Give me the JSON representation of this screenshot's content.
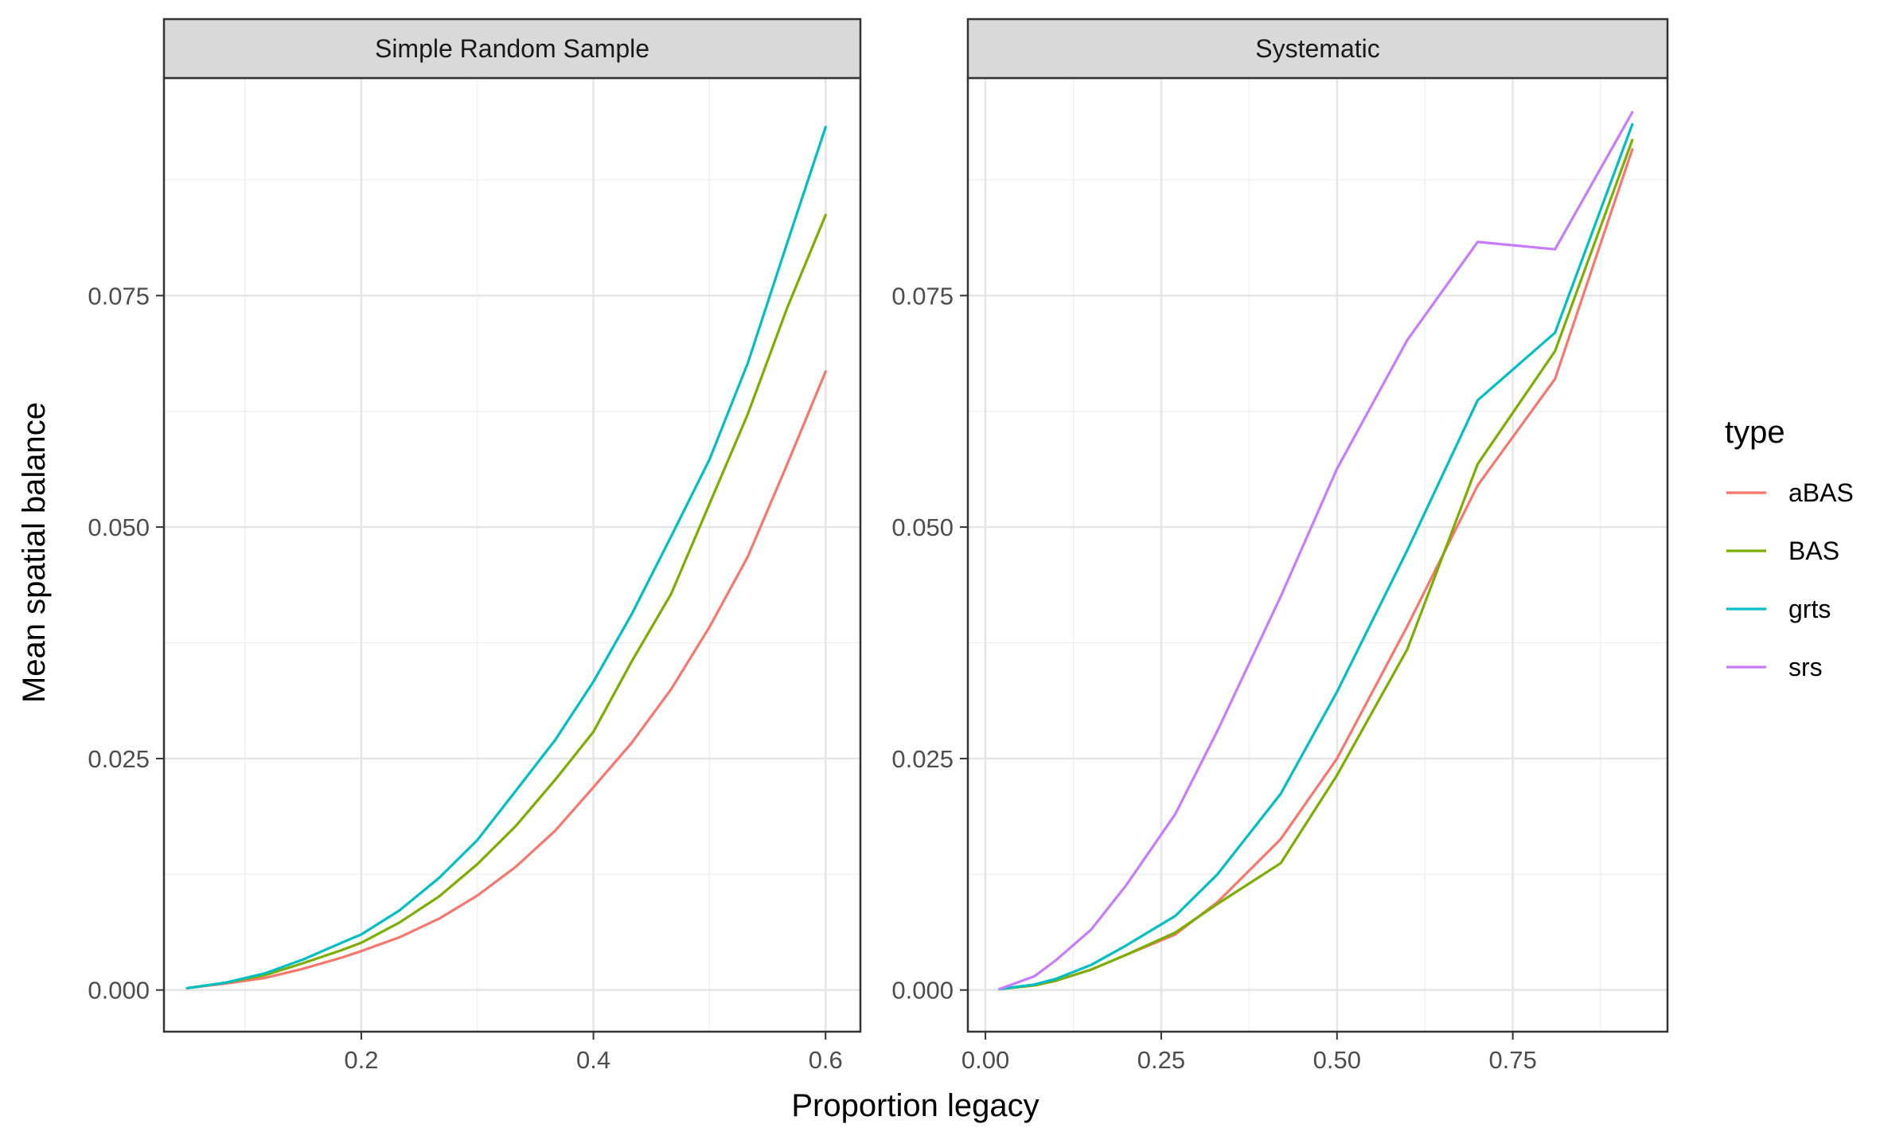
{
  "chart_data": {
    "type": "line",
    "xlabel": "Proportion legacy",
    "ylabel": "Mean spatial balance",
    "legend": {
      "title": "type",
      "position": "right",
      "entries": [
        {
          "name": "aBAS",
          "color": "#F8766D"
        },
        {
          "name": "BAS",
          "color": "#7CAE00"
        },
        {
          "name": "grts",
          "color": "#00BFC4"
        },
        {
          "name": "srs",
          "color": "#C77CFF"
        }
      ]
    },
    "grid": true,
    "panels": [
      {
        "title": "Simple Random Sample",
        "xlim": [
          0.03,
          0.63
        ],
        "ylim": [
          -0.0045,
          0.0985
        ],
        "xticks": [
          {
            "value": 0.2,
            "label": "0.2"
          },
          {
            "value": 0.4,
            "label": "0.4"
          },
          {
            "value": 0.6,
            "label": "0.6"
          }
        ],
        "yticks": [
          {
            "value": 0.0,
            "label": "0.000"
          },
          {
            "value": 0.025,
            "label": "0.025"
          },
          {
            "value": 0.05,
            "label": "0.050"
          },
          {
            "value": 0.075,
            "label": "0.075"
          }
        ],
        "series": [
          {
            "name": "aBAS",
            "color": "#F8766D",
            "x": [
              0.05,
              0.083,
              0.117,
              0.15,
              0.183,
              0.2,
              0.233,
              0.267,
              0.3,
              0.333,
              0.367,
              0.4,
              0.433,
              0.467,
              0.5,
              0.533,
              0.567,
              0.6
            ],
            "y": [
              0.0002,
              0.0007,
              0.0013,
              0.0023,
              0.0035,
              0.0042,
              0.0057,
              0.0077,
              0.0102,
              0.0133,
              0.0172,
              0.0219,
              0.0267,
              0.0325,
              0.0392,
              0.0468,
              0.0568,
              0.0668
            ]
          },
          {
            "name": "BAS",
            "color": "#7CAE00",
            "x": [
              0.05,
              0.083,
              0.117,
              0.15,
              0.183,
              0.2,
              0.233,
              0.267,
              0.3,
              0.333,
              0.367,
              0.4,
              0.433,
              0.467,
              0.5,
              0.533,
              0.567,
              0.6
            ],
            "y": [
              0.0002,
              0.0008,
              0.0016,
              0.0029,
              0.0043,
              0.0051,
              0.0073,
              0.0101,
              0.0136,
              0.0177,
              0.0227,
              0.0279,
              0.0355,
              0.0428,
              0.0525,
              0.0622,
              0.0737,
              0.0837
            ]
          },
          {
            "name": "grts",
            "color": "#00BFC4",
            "x": [
              0.05,
              0.083,
              0.117,
              0.15,
              0.183,
              0.2,
              0.233,
              0.267,
              0.3,
              0.333,
              0.367,
              0.4,
              0.433,
              0.467,
              0.5,
              0.533,
              0.567,
              0.6
            ],
            "y": [
              0.0002,
              0.0008,
              0.0018,
              0.0033,
              0.0051,
              0.006,
              0.0086,
              0.0121,
              0.0162,
              0.0215,
              0.027,
              0.0333,
              0.0406,
              0.049,
              0.0573,
              0.0677,
              0.0807,
              0.0932
            ]
          }
        ]
      },
      {
        "title": "Systematic",
        "xlim": [
          -0.025,
          0.97
        ],
        "ylim": [
          -0.0045,
          0.0985
        ],
        "xticks": [
          {
            "value": 0.0,
            "label": "0.00"
          },
          {
            "value": 0.25,
            "label": "0.25"
          },
          {
            "value": 0.5,
            "label": "0.50"
          },
          {
            "value": 0.75,
            "label": "0.75"
          }
        ],
        "yticks": [
          {
            "value": 0.0,
            "label": "0.000"
          },
          {
            "value": 0.025,
            "label": "0.025"
          },
          {
            "value": 0.05,
            "label": "0.050"
          },
          {
            "value": 0.075,
            "label": "0.075"
          }
        ],
        "series": [
          {
            "name": "aBAS",
            "color": "#F8766D",
            "x": [
              0.02,
              0.07,
              0.1,
              0.15,
              0.2,
              0.27,
              0.33,
              0.42,
              0.5,
              0.6,
              0.7,
              0.81,
              0.92
            ],
            "y": [
              0.0001,
              0.0005,
              0.001,
              0.0022,
              0.0038,
              0.006,
              0.0095,
              0.0163,
              0.025,
              0.0393,
              0.0545,
              0.066,
              0.0908
            ]
          },
          {
            "name": "BAS",
            "color": "#7CAE00",
            "x": [
              0.02,
              0.07,
              0.1,
              0.15,
              0.2,
              0.27,
              0.33,
              0.42,
              0.5,
              0.6,
              0.7,
              0.81,
              0.92
            ],
            "y": [
              0.0001,
              0.0005,
              0.001,
              0.0022,
              0.0038,
              0.0062,
              0.0093,
              0.0137,
              0.0232,
              0.0368,
              0.0568,
              0.069,
              0.0918
            ]
          },
          {
            "name": "grts",
            "color": "#00BFC4",
            "x": [
              0.02,
              0.07,
              0.1,
              0.15,
              0.2,
              0.27,
              0.33,
              0.42,
              0.5,
              0.6,
              0.7,
              0.81,
              0.92
            ],
            "y": [
              0.0001,
              0.0006,
              0.0012,
              0.0027,
              0.0048,
              0.008,
              0.0125,
              0.0212,
              0.0322,
              0.0475,
              0.0637,
              0.071,
              0.0935
            ]
          },
          {
            "name": "srs",
            "color": "#C77CFF",
            "x": [
              0.02,
              0.07,
              0.1,
              0.15,
              0.2,
              0.27,
              0.33,
              0.42,
              0.5,
              0.6,
              0.7,
              0.81,
              0.92
            ],
            "y": [
              0.0001,
              0.0015,
              0.0032,
              0.0065,
              0.0113,
              0.019,
              0.028,
              0.0425,
              0.0563,
              0.0702,
              0.0808,
              0.08,
              0.0948
            ]
          }
        ]
      }
    ]
  }
}
